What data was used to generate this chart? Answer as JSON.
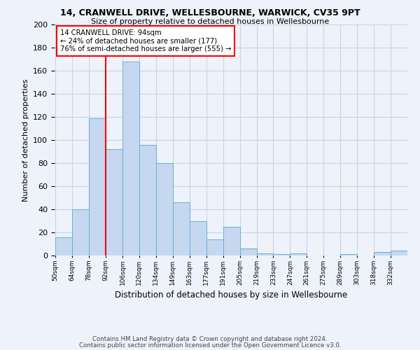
{
  "title1": "14, CRANWELL DRIVE, WELLESBOURNE, WARWICK, CV35 9PT",
  "title2": "Size of property relative to detached houses in Wellesbourne",
  "xlabel": "Distribution of detached houses by size in Wellesbourne",
  "ylabel": "Number of detached properties",
  "footnote1": "Contains HM Land Registry data © Crown copyright and database right 2024.",
  "footnote2": "Contains public sector information licensed under the Open Government Licence v3.0.",
  "bin_labels": [
    "50sqm",
    "64sqm",
    "78sqm",
    "92sqm",
    "106sqm",
    "120sqm",
    "134sqm",
    "149sqm",
    "163sqm",
    "177sqm",
    "191sqm",
    "205sqm",
    "219sqm",
    "233sqm",
    "247sqm",
    "261sqm",
    "275sqm",
    "289sqm",
    "303sqm",
    "318sqm",
    "332sqm"
  ],
  "bar_values": [
    16,
    40,
    119,
    92,
    168,
    96,
    80,
    46,
    30,
    14,
    25,
    6,
    2,
    1,
    2,
    0,
    0,
    1,
    0,
    3,
    4
  ],
  "bar_color": "#c5d8f0",
  "bar_edge_color": "#6baed6",
  "vline_index": 3,
  "vline_color": "red",
  "annotation_title": "14 CRANWELL DRIVE: 94sqm",
  "annotation_line1": "← 24% of detached houses are smaller (177)",
  "annotation_line2": "76% of semi-detached houses are larger (555) →",
  "annotation_box_color": "white",
  "annotation_box_edgecolor": "red",
  "ylim": [
    0,
    200
  ],
  "yticks": [
    0,
    20,
    40,
    60,
    80,
    100,
    120,
    140,
    160,
    180,
    200
  ],
  "grid_color": "#c8d4e8",
  "bg_color": "#eef2fa"
}
